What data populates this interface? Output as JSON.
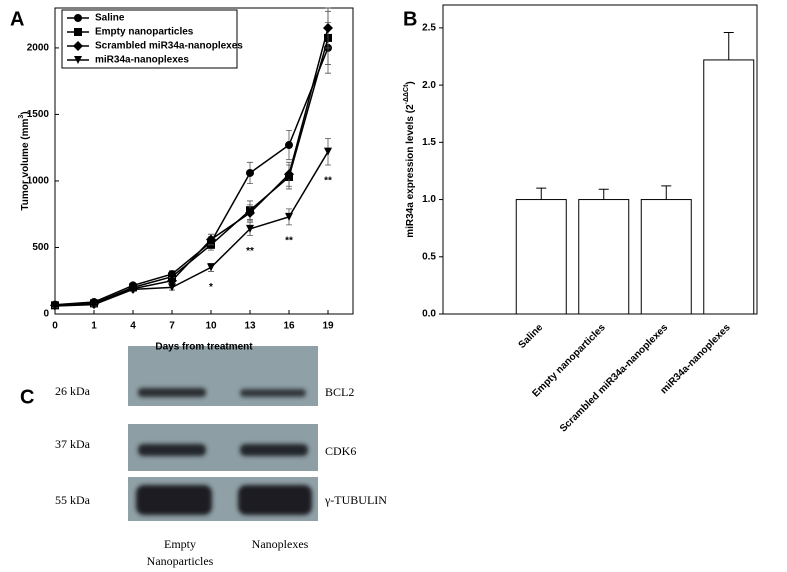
{
  "panel_labels": [
    "A",
    "B",
    "C"
  ],
  "chart_data": [
    {
      "type": "line",
      "y_label": [
        "Tumor volume (mm",
        "3",
        ")"
      ],
      "x_label": "Days from treatment",
      "categories": [
        "0",
        "1",
        "4",
        "7",
        "10",
        "13",
        "16",
        "19"
      ],
      "ylim": [
        0,
        2300
      ],
      "yticks": [
        0,
        500,
        1000,
        1500,
        2000
      ],
      "legend": "upper left",
      "series": [
        {
          "name": "Saline",
          "marker": "circle",
          "color": "#000000",
          "values": [
            70,
            90,
            215,
            300,
            540,
            1060,
            1270,
            2000
          ],
          "errors": [
            10,
            10,
            15,
            25,
            40,
            80,
            110,
            190
          ]
        },
        {
          "name": "Empty nanoparticles",
          "marker": "square",
          "color": "#000000",
          "values": [
            65,
            80,
            200,
            280,
            520,
            780,
            1030,
            2075
          ],
          "errors": [
            10,
            10,
            15,
            25,
            40,
            70,
            90,
            200
          ]
        },
        {
          "name": "Scrambled miR34a-nanoplexes",
          "marker": "diamond",
          "color": "#000000",
          "values": [
            65,
            75,
            190,
            250,
            560,
            760,
            1050,
            2150
          ],
          "errors": [
            10,
            10,
            15,
            25,
            40,
            60,
            90,
            150
          ]
        },
        {
          "name": "miR34a-nanoplexes",
          "marker": "triangle-down",
          "color": "#000000",
          "values": [
            60,
            70,
            185,
            200,
            350,
            640,
            730,
            1220
          ],
          "errors": [
            10,
            10,
            15,
            20,
            30,
            50,
            60,
            100
          ]
        }
      ],
      "annotations": [
        {
          "category": "10",
          "label": "*"
        },
        {
          "category": "13",
          "label": "**"
        },
        {
          "category": "16",
          "label": "**"
        },
        {
          "category": "19",
          "label": "**"
        }
      ]
    },
    {
      "type": "bar",
      "y_label": [
        "miR34a expression levels (2",
        "-ΔΔCt",
        ")"
      ],
      "categories": [
        "Saline",
        "Empty nanoparticles",
        "Scrambled miR34a-nanoplexes",
        "miR34a-nanoplexes"
      ],
      "values": [
        1.0,
        1.0,
        1.0,
        2.22
      ],
      "errors": [
        0.1,
        0.09,
        0.12,
        0.24
      ],
      "color": "#ffffff",
      "ylim": [
        0,
        2.7
      ],
      "yticks": [
        {
          "value": 0,
          "label": "0.0"
        },
        0.5,
        {
          "value": 1,
          "label": "1.0"
        },
        1.5,
        {
          "value": 2,
          "label": "2.0"
        },
        2.5
      ]
    }
  ],
  "blot": {
    "rows": [
      {
        "size": "26 kDa",
        "protein": "BCL2"
      },
      {
        "size": "37 kDa",
        "protein": "CDK6"
      },
      {
        "size": "55 kDa",
        "protein": "γ-TUBULIN"
      }
    ],
    "lanes": [
      [
        "Empty",
        "Nanoparticles"
      ],
      [
        "Nanoplexes"
      ]
    ]
  }
}
